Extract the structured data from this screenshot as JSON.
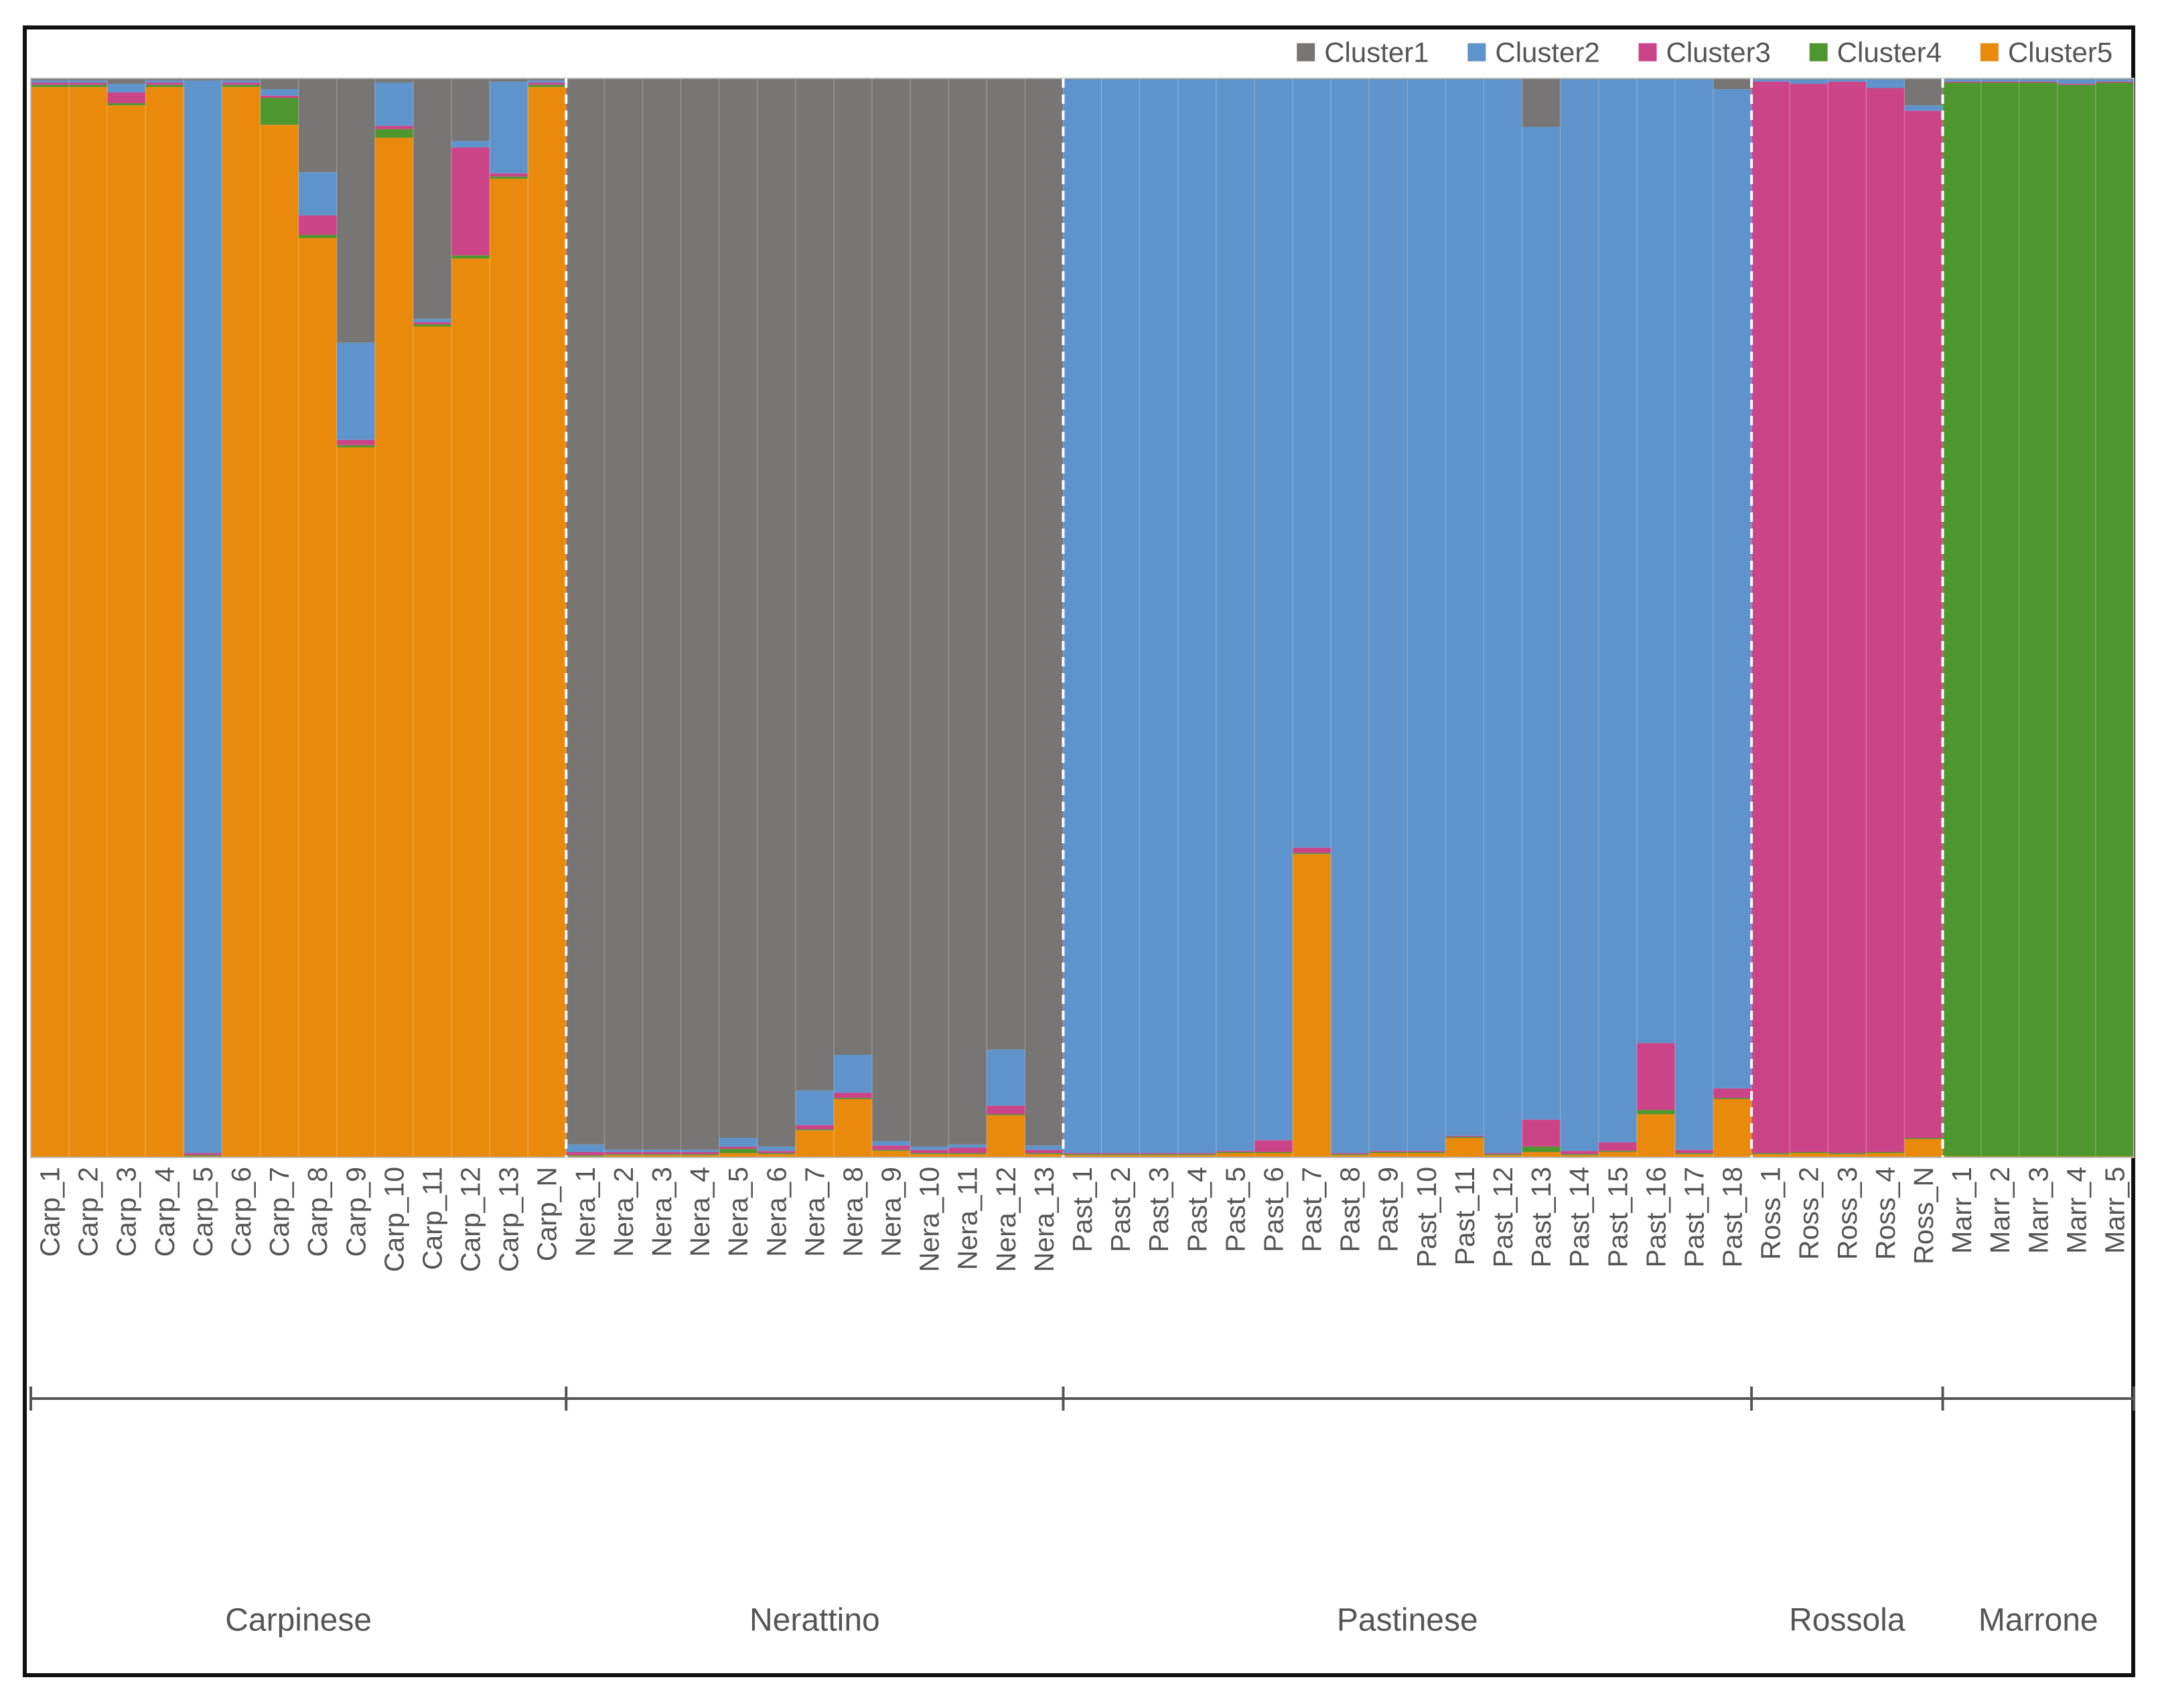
{
  "chart_data": {
    "type": "bar",
    "stacked": true,
    "ylim": [
      0,
      1
    ],
    "legend_position": "top-right",
    "clusters": [
      {
        "name": "Cluster1",
        "color": "#777674"
      },
      {
        "name": "Cluster2",
        "color": "#5e93cc"
      },
      {
        "name": "Cluster3",
        "color": "#cc4488"
      },
      {
        "name": "Cluster4",
        "color": "#4e962e"
      },
      {
        "name": "Cluster5",
        "color": "#ea8a0d"
      }
    ],
    "groups": [
      {
        "name": "Carpinese",
        "samples": [
          {
            "id": "Carp_1",
            "q": [
              0.002,
              0.002,
              0.002,
              0.002,
              0.992
            ]
          },
          {
            "id": "Carp_2",
            "q": [
              0.002,
              0.002,
              0.002,
              0.002,
              0.992
            ]
          },
          {
            "id": "Carp_3",
            "q": [
              0.005,
              0.008,
              0.01,
              0.002,
              0.975
            ]
          },
          {
            "id": "Carp_4",
            "q": [
              0.002,
              0.002,
              0.002,
              0.002,
              0.992
            ]
          },
          {
            "id": "Carp_5",
            "q": [
              0.002,
              0.994,
              0.002,
              0.001,
              0.001
            ]
          },
          {
            "id": "Carp_6",
            "q": [
              0.002,
              0.002,
              0.002,
              0.002,
              0.992
            ]
          },
          {
            "id": "Carp_7",
            "q": [
              0.01,
              0.006,
              0.002,
              0.025,
              0.957
            ]
          },
          {
            "id": "Carp_8",
            "q": [
              0.087,
              0.04,
              0.018,
              0.003,
              0.852
            ]
          },
          {
            "id": "Carp_9",
            "q": [
              0.245,
              0.09,
              0.005,
              0.002,
              0.658
            ]
          },
          {
            "id": "Carp_10",
            "q": [
              0.004,
              0.04,
              0.003,
              0.008,
              0.945
            ]
          },
          {
            "id": "Carp_11",
            "q": [
              0.223,
              0.003,
              0.002,
              0.002,
              0.77
            ]
          },
          {
            "id": "Carp_12",
            "q": [
              0.058,
              0.006,
              0.1,
              0.003,
              0.833
            ]
          },
          {
            "id": "Carp_13",
            "q": [
              0.003,
              0.085,
              0.003,
              0.002,
              0.907
            ]
          },
          {
            "id": "Carp_N",
            "q": [
              0.002,
              0.002,
              0.002,
              0.002,
              0.992
            ]
          }
        ]
      },
      {
        "name": "Nerattino",
        "samples": [
          {
            "id": "Nera_1",
            "q": [
              0.988,
              0.007,
              0.003,
              0.001,
              0.001
            ]
          },
          {
            "id": "Nera_2",
            "q": [
              0.993,
              0.002,
              0.002,
              0.001,
              0.002
            ]
          },
          {
            "id": "Nera_3",
            "q": [
              0.993,
              0.002,
              0.002,
              0.001,
              0.002
            ]
          },
          {
            "id": "Nera_4",
            "q": [
              0.993,
              0.002,
              0.002,
              0.001,
              0.002
            ]
          },
          {
            "id": "Nera_5",
            "q": [
              0.982,
              0.008,
              0.002,
              0.004,
              0.004
            ]
          },
          {
            "id": "Nera_6",
            "q": [
              0.99,
              0.004,
              0.002,
              0.001,
              0.003
            ]
          },
          {
            "id": "Nera_7",
            "q": [
              0.938,
              0.032,
              0.004,
              0.001,
              0.025
            ]
          },
          {
            "id": "Nera_8",
            "q": [
              0.905,
              0.035,
              0.005,
              0.001,
              0.054
            ]
          },
          {
            "id": "Nera_9",
            "q": [
              0.985,
              0.004,
              0.004,
              0.001,
              0.006
            ]
          },
          {
            "id": "Nera_10",
            "q": [
              0.99,
              0.003,
              0.003,
              0.001,
              0.003
            ]
          },
          {
            "id": "Nera_11",
            "q": [
              0.988,
              0.003,
              0.005,
              0.001,
              0.003
            ]
          },
          {
            "id": "Nera_12",
            "q": [
              0.9,
              0.052,
              0.008,
              0.001,
              0.039
            ]
          },
          {
            "id": "Nera_13",
            "q": [
              0.989,
              0.004,
              0.003,
              0.001,
              0.003
            ]
          }
        ]
      },
      {
        "name": "Pastinese",
        "samples": [
          {
            "id": "Past_1",
            "q": [
              0.001,
              0.995,
              0.001,
              0.001,
              0.002
            ]
          },
          {
            "id": "Past_2",
            "q": [
              0.001,
              0.995,
              0.001,
              0.001,
              0.002
            ]
          },
          {
            "id": "Past_3",
            "q": [
              0.001,
              0.995,
              0.001,
              0.001,
              0.002
            ]
          },
          {
            "id": "Past_4",
            "q": [
              0.001,
              0.995,
              0.001,
              0.001,
              0.002
            ]
          },
          {
            "id": "Past_5",
            "q": [
              0.001,
              0.993,
              0.001,
              0.001,
              0.004
            ]
          },
          {
            "id": "Past_6",
            "q": [
              0.001,
              0.983,
              0.011,
              0.001,
              0.004
            ]
          },
          {
            "id": "Past_7",
            "q": [
              0.001,
              0.712,
              0.005,
              0.001,
              0.281
            ]
          },
          {
            "id": "Past_8",
            "q": [
              0.001,
              0.995,
              0.001,
              0.001,
              0.002
            ]
          },
          {
            "id": "Past_9",
            "q": [
              0.001,
              0.993,
              0.001,
              0.001,
              0.004
            ]
          },
          {
            "id": "Past_10",
            "q": [
              0.001,
              0.993,
              0.001,
              0.001,
              0.004
            ]
          },
          {
            "id": "Past_11",
            "q": [
              0.001,
              0.979,
              0.001,
              0.001,
              0.018
            ]
          },
          {
            "id": "Past_12",
            "q": [
              0.001,
              0.995,
              0.001,
              0.001,
              0.002
            ]
          },
          {
            "id": "Past_13",
            "q": [
              0.045,
              0.92,
              0.025,
              0.005,
              0.005
            ]
          },
          {
            "id": "Past_14",
            "q": [
              0.001,
              0.993,
              0.003,
              0.001,
              0.002
            ]
          },
          {
            "id": "Past_15",
            "q": [
              0.001,
              0.985,
              0.008,
              0.001,
              0.005
            ]
          },
          {
            "id": "Past_16",
            "q": [
              0.001,
              0.893,
              0.062,
              0.004,
              0.04
            ]
          },
          {
            "id": "Past_17",
            "q": [
              0.001,
              0.992,
              0.003,
              0.001,
              0.003
            ]
          },
          {
            "id": "Past_18",
            "q": [
              0.01,
              0.926,
              0.009,
              0.001,
              0.054
            ]
          }
        ]
      },
      {
        "name": "Rossola",
        "samples": [
          {
            "id": "Ross_1",
            "q": [
              0.001,
              0.002,
              0.993,
              0.001,
              0.003
            ]
          },
          {
            "id": "Ross_2",
            "q": [
              0.001,
              0.004,
              0.99,
              0.001,
              0.004
            ]
          },
          {
            "id": "Ross_3",
            "q": [
              0.001,
              0.002,
              0.993,
              0.001,
              0.003
            ]
          },
          {
            "id": "Ross_4",
            "q": [
              0.001,
              0.008,
              0.986,
              0.001,
              0.004
            ]
          },
          {
            "id": "Ross_N",
            "q": [
              0.025,
              0.005,
              0.952,
              0.001,
              0.017
            ]
          }
        ]
      },
      {
        "name": "Marrone",
        "samples": [
          {
            "id": "Marr_1",
            "q": [
              0.001,
              0.002,
              0.001,
              0.995,
              0.001
            ]
          },
          {
            "id": "Marr_2",
            "q": [
              0.001,
              0.002,
              0.001,
              0.995,
              0.001
            ]
          },
          {
            "id": "Marr_3",
            "q": [
              0.001,
              0.002,
              0.001,
              0.995,
              0.001
            ]
          },
          {
            "id": "Marr_4",
            "q": [
              0.001,
              0.004,
              0.001,
              0.993,
              0.001
            ]
          },
          {
            "id": "Marr_5",
            "q": [
              0.001,
              0.002,
              0.001,
              0.995,
              0.001
            ]
          }
        ]
      }
    ]
  }
}
